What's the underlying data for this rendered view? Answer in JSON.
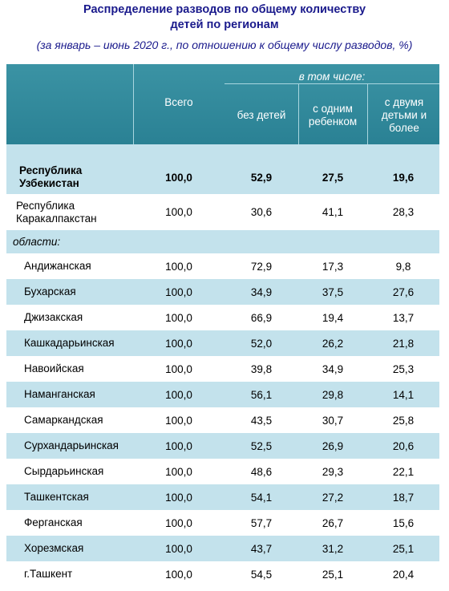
{
  "title": [
    "Распределение разводов по общему количеству",
    "детей по регионам"
  ],
  "subtitle": "(за январь – июнь 2020 г., по отношению к общему числу разводов, %)",
  "table": {
    "header": {
      "total": "Всего",
      "including": "в том числе:",
      "columns": [
        "без детей",
        "с одним ребенком",
        "с двумя детьми и более"
      ]
    },
    "top_rows": [
      [
        "Республика Узбекистан",
        "100,0",
        "52,9",
        "27,5",
        "19,6"
      ],
      [
        "Республика Каракалпакстан",
        "100,0",
        "30,6",
        "41,1",
        "28,3"
      ]
    ],
    "section": "области:",
    "region_rows": [
      [
        "Андижанская",
        "100,0",
        "72,9",
        "17,3",
        "9,8"
      ],
      [
        "Бухарская",
        "100,0",
        "34,9",
        "37,5",
        "27,6"
      ],
      [
        "Джизакская",
        "100,0",
        "66,9",
        "19,4",
        "13,7"
      ],
      [
        "Кашкадарьинская",
        "100,0",
        "52,0",
        "26,2",
        "21,8"
      ],
      [
        "Навоийская",
        "100,0",
        "39,8",
        "34,9",
        "25,3"
      ],
      [
        "Наманганская",
        "100,0",
        "56,1",
        "29,8",
        "14,1"
      ],
      [
        "Самаркандская",
        "100,0",
        "43,5",
        "30,7",
        "25,8"
      ],
      [
        "Сурхандарьинская",
        "100,0",
        "52,5",
        "26,9",
        "20,6"
      ],
      [
        "Сырдарьинская",
        "100,0",
        "48,6",
        "29,3",
        "22,1"
      ],
      [
        "Ташкентская",
        "100,0",
        "54,1",
        "27,2",
        "18,7"
      ],
      [
        "Ферганская",
        "100,0",
        "57,7",
        "26,7",
        "15,6"
      ],
      [
        "Хорезмская",
        "100,0",
        "43,7",
        "31,2",
        "25,1"
      ],
      [
        "г.Ташкент",
        "100,0",
        "54,5",
        "25,1",
        "20,4"
      ]
    ]
  }
}
